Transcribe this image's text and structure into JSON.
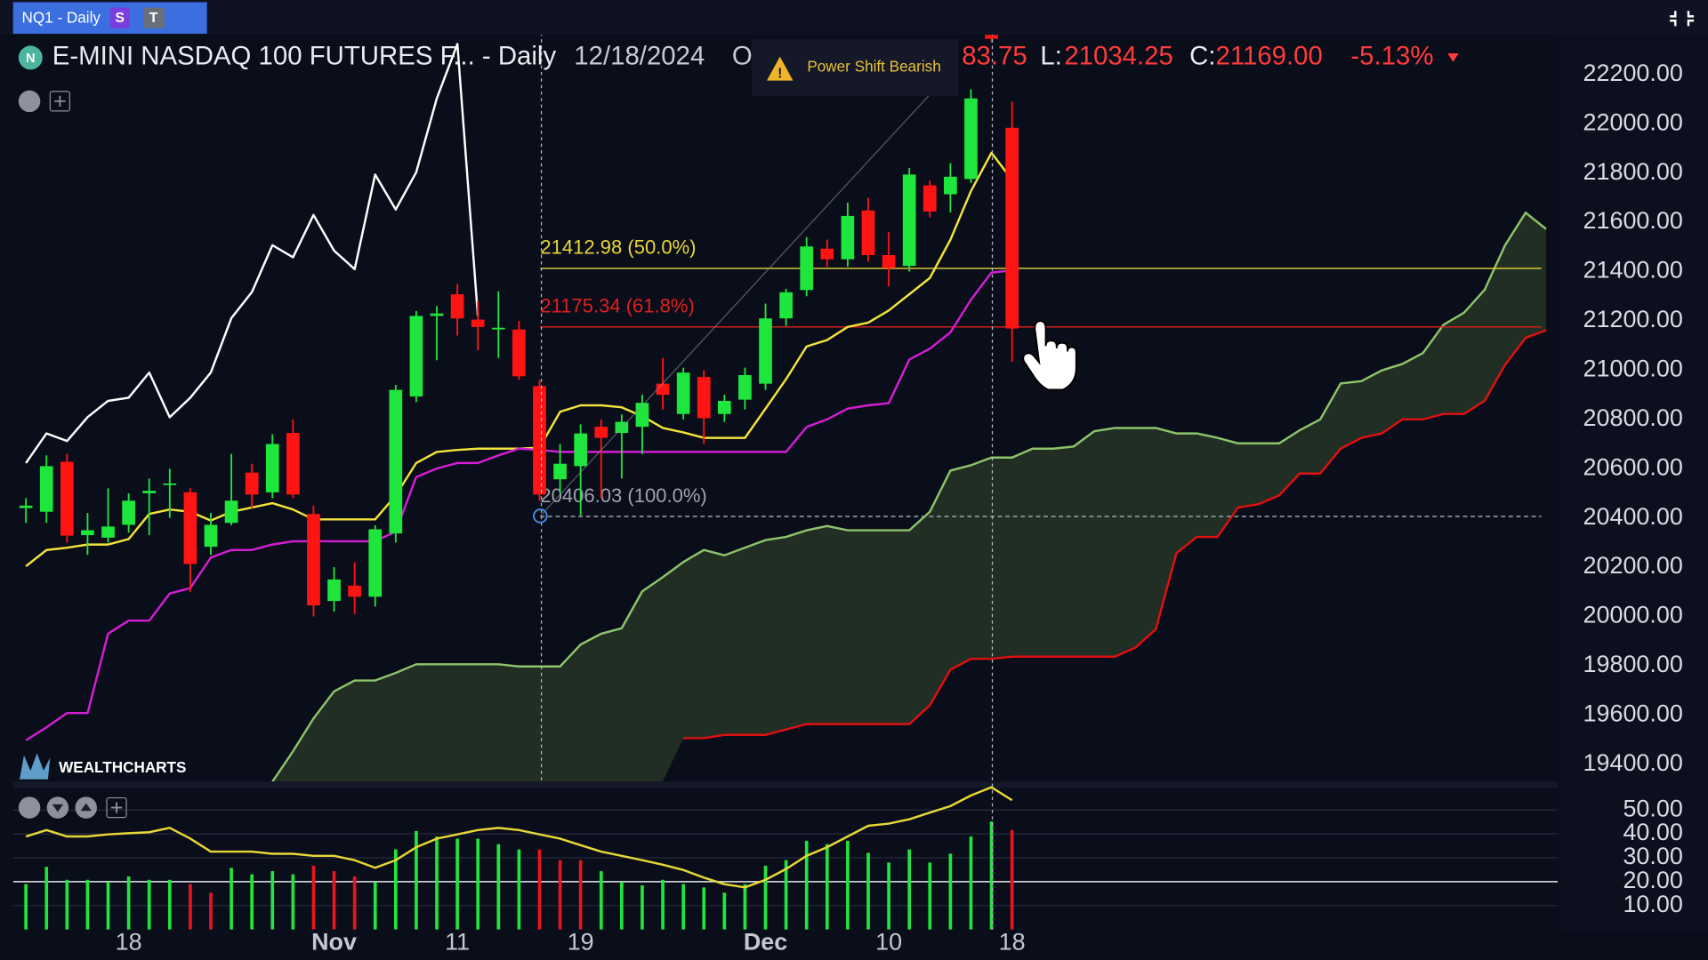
{
  "ui": {
    "tab": "NQ1 - Daily",
    "tab_s": "S",
    "tab_t": "T",
    "badge": "N",
    "date": "12/18/2024",
    "open_label": "O",
    "open_text": "83.75",
    "low_label": "L:",
    "low_text": "21034.25",
    "close_label": "C:",
    "close_text": "21169.00",
    "change_text": "-5.13%",
    "alert": "Power Shift Bearish",
    "watermark": "WEALTHCHARTS"
  },
  "chart_data": [
    {
      "type": "candlestick",
      "title": "E-MINI NASDAQ 100 FUTURES F... - Daily",
      "categories": [
        null,
        null,
        null,
        null,
        null,
        "18",
        null,
        null,
        null,
        null,
        null,
        null,
        null,
        null,
        null,
        "Nov",
        null,
        null,
        null,
        null,
        null,
        "11",
        null,
        null,
        null,
        null,
        null,
        "19",
        null,
        null,
        null,
        null,
        null,
        null,
        null,
        null,
        "Dec",
        null,
        null,
        null,
        null,
        null,
        "10",
        null,
        null,
        null,
        null,
        null,
        "18",
        null,
        null,
        null,
        null,
        null,
        null,
        null,
        null,
        null,
        null,
        null,
        null,
        null,
        null,
        null,
        null,
        null,
        null,
        null,
        null,
        null,
        null,
        null,
        null,
        null,
        null
      ],
      "open": [
        20440,
        20425,
        20628,
        20330,
        20320,
        20372,
        20500,
        20535,
        20504,
        20283,
        20380,
        20584,
        20504,
        20745,
        20416,
        20063,
        20125,
        20080,
        20337,
        20893,
        21220,
        21308,
        21205,
        21170,
        21165,
        20935,
        20557,
        20610,
        20770,
        20745,
        20770,
        20945,
        20822,
        20972,
        20822,
        20880,
        20945,
        21210,
        21325,
        21493,
        21450,
        21648,
        21467,
        21423,
        21750,
        21714,
        21776,
        22380,
        21983.75,
        null,
        null,
        null,
        null,
        null,
        null,
        null,
        null,
        null,
        null,
        null,
        null,
        null,
        null,
        null,
        null,
        null,
        null,
        null,
        null,
        null,
        null,
        null,
        null,
        null,
        null
      ],
      "high": [
        20480,
        20654,
        20660,
        20420,
        20520,
        20500,
        20560,
        20600,
        20520,
        20420,
        20660,
        20620,
        20740,
        20800,
        20450,
        20200,
        20220,
        20370,
        20940,
        21240,
        21260,
        21350,
        21280,
        21320,
        21200,
        20960,
        20700,
        20780,
        20800,
        20820,
        20900,
        21050,
        21010,
        21000,
        20900,
        21010,
        21270,
        21330,
        21540,
        21530,
        21680,
        21700,
        21560,
        21820,
        21770,
        21840,
        22140,
        22420,
        22090,
        null,
        null,
        null,
        null,
        null,
        null,
        null,
        null,
        null,
        null,
        null,
        null,
        null,
        null,
        null,
        null,
        null,
        null,
        null,
        null,
        null,
        null,
        null,
        null,
        null,
        null
      ],
      "low": [
        20380,
        20380,
        20300,
        20250,
        20300,
        20340,
        20330,
        20400,
        20100,
        20250,
        20370,
        20440,
        20480,
        20480,
        20000,
        20020,
        20010,
        20040,
        20300,
        20870,
        21040,
        21140,
        21080,
        21050,
        20960,
        20470,
        20500,
        20410,
        20480,
        20560,
        20660,
        20840,
        20800,
        20700,
        20790,
        20840,
        20920,
        21180,
        21300,
        21420,
        21420,
        21440,
        21340,
        21400,
        21620,
        21640,
        21760,
        22330,
        21034.25,
        null,
        null,
        null,
        null,
        null,
        null,
        null,
        null,
        null,
        null,
        null,
        null,
        null,
        null,
        null,
        null,
        null,
        null,
        null,
        null,
        null,
        null,
        null,
        null,
        null,
        null
      ],
      "close": [
        20450,
        20610,
        20328,
        20350,
        20365,
        20470,
        20510,
        20540,
        20213,
        20372,
        20470,
        20495,
        20700,
        20495,
        20045,
        20150,
        20080,
        20354,
        20920,
        21220,
        21230,
        21210,
        21175,
        21172,
        20975,
        20495,
        20620,
        20743,
        20725,
        20790,
        20867,
        20900,
        20990,
        20805,
        20875,
        20980,
        21210,
        21316,
        21502,
        21450,
        21626,
        21467,
        21414,
        21794,
        21644,
        21785,
        22103,
        22345,
        21169,
        null,
        null,
        null,
        null,
        null,
        null,
        null,
        null,
        null,
        null,
        null,
        null,
        null,
        null,
        null,
        null,
        null,
        null,
        null,
        null,
        null,
        null,
        null,
        null,
        null,
        null
      ],
      "up_color": "#1fe63c",
      "down_color": "#ff1414",
      "series": [
        {
          "color": "#ffffff",
          "values": [
            20623,
            20743,
            20712,
            20809,
            20875,
            20888,
            20990,
            20809,
            20888,
            20990,
            21211,
            21317,
            21507,
            21458,
            21630,
            21485,
            21410,
            21794,
            21652,
            21803,
            22103,
            22324,
            21220,
            null,
            null,
            null,
            null,
            null,
            null,
            null,
            null,
            null,
            null,
            null,
            null,
            null,
            null,
            null,
            null,
            null,
            null,
            null,
            null,
            null,
            null,
            null,
            null,
            null,
            null,
            null,
            null,
            null,
            null,
            null,
            null,
            null,
            null,
            null,
            null,
            null,
            null,
            null,
            null,
            null,
            null,
            null,
            null,
            null,
            null,
            null,
            null,
            null,
            null,
            null,
            null
          ]
        },
        {
          "color": "#f2e43a",
          "values": [
            20204,
            20270,
            20279,
            20292,
            20292,
            20314,
            20416,
            20434,
            20425,
            20389,
            20425,
            20442,
            20460,
            20434,
            20394,
            20394,
            20394,
            20394,
            20491,
            20623,
            20668,
            20676,
            20681,
            20681,
            20681,
            20685,
            20831,
            20857,
            20857,
            20849,
            20813,
            20765,
            20747,
            20725,
            20725,
            20725,
            20844,
            20963,
            21096,
            21122,
            21175,
            21193,
            21242,
            21308,
            21374,
            21529,
            21727,
            21882,
            21772,
            null,
            null,
            null,
            null,
            null,
            null,
            null,
            null,
            null,
            null,
            null,
            null,
            null,
            null,
            null,
            null,
            null,
            null,
            null,
            null,
            null,
            null,
            null,
            null,
            null,
            null
          ]
        },
        {
          "color": "#d41ed4",
          "values": [
            19497,
            19550,
            19608,
            19608,
            19930,
            19983,
            19983,
            20093,
            20115,
            20239,
            20270,
            20270,
            20292,
            20305,
            20305,
            20305,
            20305,
            20305,
            20345,
            20566,
            20601,
            20623,
            20623,
            20654,
            20681,
            20676,
            20668,
            20668,
            20668,
            20668,
            20668,
            20668,
            20668,
            20668,
            20668,
            20668,
            20668,
            20668,
            20769,
            20800,
            20844,
            20857,
            20866,
            21043,
            21087,
            21153,
            21286,
            21396,
            21405,
            null,
            null,
            null,
            null,
            null,
            null,
            null,
            null,
            null,
            null,
            null,
            null,
            null,
            null,
            null,
            null,
            null,
            null,
            null,
            null,
            null,
            null,
            null,
            null,
            null,
            null
          ]
        }
      ],
      "cloud": {
        "fill": "rgba(70,100,50,0.38)",
        "upper": {
          "color": "#8cc46a",
          "values": [
            null,
            null,
            null,
            null,
            null,
            null,
            null,
            null,
            null,
            null,
            null,
            null,
            19329,
            19453,
            19586,
            19696,
            19740,
            19740,
            19771,
            19806,
            19806,
            19806,
            19806,
            19806,
            19797,
            19797,
            19797,
            19886,
            19930,
            19952,
            20102,
            20160,
            20221,
            20270,
            20248,
            20279,
            20310,
            20323,
            20350,
            20367,
            20350,
            20350,
            20350,
            20350,
            20425,
            20592,
            20614,
            20645,
            20645,
            20681,
            20681,
            20690,
            20752,
            20765,
            20765,
            20765,
            20743,
            20743,
            20725,
            20703,
            20703,
            20703,
            20756,
            20800,
            20946,
            20955,
            20999,
            21025,
            21069,
            21184,
            21233,
            21326,
            21507,
            21639,
            21573
          ]
        },
        "lower": {
          "color": "#e01010",
          "values": [
            null,
            null,
            null,
            null,
            null,
            null,
            null,
            null,
            null,
            null,
            null,
            null,
            null,
            null,
            null,
            null,
            null,
            null,
            null,
            null,
            null,
            null,
            null,
            null,
            null,
            null,
            null,
            null,
            null,
            null,
            null,
            null,
            19506,
            19506,
            19519,
            19519,
            19519,
            19541,
            19563,
            19563,
            19563,
            19563,
            19563,
            19563,
            19639,
            19784,
            19828,
            19828,
            19837,
            19837,
            19837,
            19837,
            19837,
            19837,
            19873,
            19948,
            20257,
            20323,
            20323,
            20442,
            20456,
            20491,
            20580,
            20580,
            20681,
            20725,
            20743,
            20800,
            20800,
            20822,
            20822,
            20875,
            21021,
            21131,
            21162
          ]
        }
      },
      "fib_levels": [
        {
          "value": 21412.98,
          "label": "21412.98 (50.0%)",
          "color": "#e8d836"
        },
        {
          "value": 21175.34,
          "label": "21175.34 (61.8%)",
          "color": "#e0201e"
        },
        {
          "value": 20406.03,
          "label": "20406.03 (100.0%)",
          "color": "#9ea3ae"
        }
      ],
      "ylim": [
        19330,
        22370
      ],
      "yticks": [
        {
          "value": 19400,
          "label": "19400.00"
        },
        {
          "value": 19600,
          "label": "19600.00"
        },
        {
          "value": 19800,
          "label": "19800.00"
        },
        {
          "value": 20000,
          "label": "20000.00"
        },
        {
          "value": 20200,
          "label": "20200.00"
        },
        {
          "value": 20400,
          "label": "20400.00"
        },
        {
          "value": 20600,
          "label": "20600.00"
        },
        {
          "value": 20800,
          "label": "20800.00"
        },
        {
          "value": 21000,
          "label": "21000.00"
        },
        {
          "value": 21200,
          "label": "21200.00"
        },
        {
          "value": 21400,
          "label": "21400.00"
        },
        {
          "value": 21600,
          "label": "21600.00"
        },
        {
          "value": 21800,
          "label": "21800.00"
        },
        {
          "value": 22000,
          "label": "22000.00"
        },
        {
          "value": 22200,
          "label": "22200.00"
        }
      ],
      "grid": false
    },
    {
      "type": "combo",
      "series": [
        {
          "type": "bar",
          "colors": [
            "#1fe63c",
            "#1fe63c",
            "#1fe63c",
            "#1fe63c",
            "#1fe63c",
            "#1fe63c",
            "#1fe63c",
            "#1fe63c",
            "#e8141e",
            "#e8141e",
            "#1fe63c",
            "#1fe63c",
            "#1fe63c",
            "#1fe63c",
            "#e8141e",
            "#e8141e",
            "#e8141e",
            "#1fe63c",
            "#1fe63c",
            "#1fe63c",
            "#1fe63c",
            "#1fe63c",
            "#1fe63c",
            "#1fe63c",
            "#1fe63c",
            "#e8141e",
            "#e8141e",
            "#e8141e",
            "#1fe63c",
            "#1fe63c",
            "#1fe63c",
            "#1fe63c",
            "#1fe63c",
            "#1fe63c",
            "#1fe63c",
            "#1fe63c",
            "#1fe63c",
            "#1fe63c",
            "#1fe63c",
            "#1fe63c",
            "#1fe63c",
            "#1fe63c",
            "#1fe63c",
            "#1fe63c",
            "#1fe63c",
            "#1fe63c",
            "#1fe63c",
            "#1fe63c",
            "#e8141e"
          ],
          "values": [
            19,
            26.2,
            20.8,
            20.8,
            19.9,
            22.2,
            20.8,
            20.8,
            19,
            15.4,
            25.8,
            23.1,
            24.4,
            23.1,
            26.7,
            24.4,
            22.2,
            19.9,
            33.5,
            41.2,
            38.9,
            38,
            38,
            35.7,
            33.5,
            33.5,
            29,
            29,
            24.4,
            19.9,
            18.5,
            20.8,
            19,
            17.6,
            15.4,
            19,
            26.7,
            29,
            37.1,
            35.7,
            37.1,
            32.1,
            28,
            33.5,
            28,
            31.7,
            38.9,
            45.2,
            41.6
          ]
        },
        {
          "type": "line",
          "color": "#e8d836",
          "values": [
            38.9,
            41.6,
            38.9,
            38.9,
            39.8,
            40.3,
            40.7,
            42.5,
            38,
            32.6,
            32.6,
            32.6,
            31.7,
            31.7,
            30.8,
            30.8,
            29,
            25.8,
            29,
            34.4,
            38,
            39.8,
            41.6,
            42.5,
            41.6,
            39.8,
            38,
            35.3,
            32.6,
            30.8,
            29,
            27.1,
            24.9,
            21.7,
            19,
            17.6,
            20.8,
            25.3,
            30.8,
            34.4,
            38.9,
            43.4,
            44.3,
            46.1,
            48.9,
            51.6,
            56.1,
            59.5,
            54.1
          ]
        }
      ],
      "reference_line": 20,
      "ylim": [
        0,
        61
      ],
      "yticks": [
        {
          "value": 10,
          "label": "10.00"
        },
        {
          "value": 20,
          "label": "20.00"
        },
        {
          "value": 30,
          "label": "30.00"
        },
        {
          "value": 40,
          "label": "40.00"
        },
        {
          "value": 50,
          "label": "50.00"
        }
      ],
      "grid": true
    }
  ]
}
